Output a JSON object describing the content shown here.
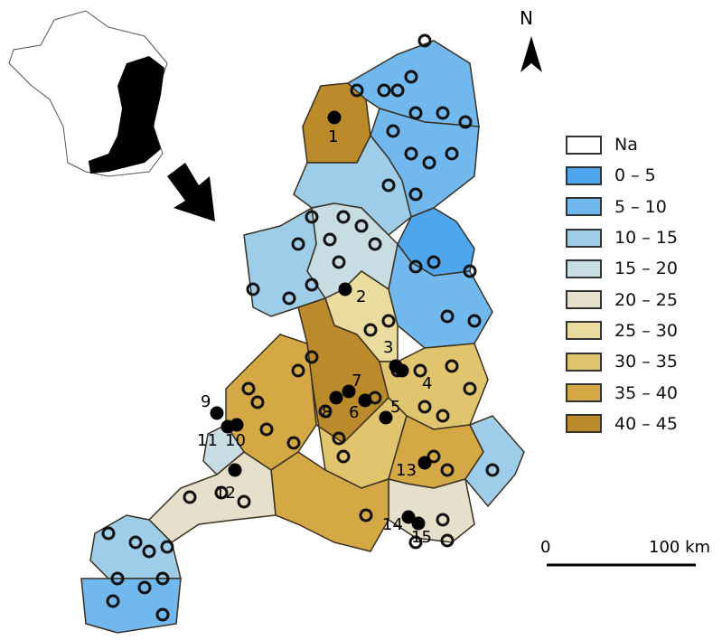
{
  "map": {
    "north_label": "N",
    "scale": {
      "start": "0",
      "end": "100 km"
    },
    "legend": [
      {
        "label": "Na",
        "color": "#ffffff"
      },
      {
        "label": "0 – 5",
        "color": "#4ea7ee"
      },
      {
        "label": "5 – 10",
        "color": "#70b8ee"
      },
      {
        "label": "10 – 15",
        "color": "#9dcde9"
      },
      {
        "label": "15 – 20",
        "color": "#c8dce4"
      },
      {
        "label": "20 – 25",
        "color": "#e6dfcc"
      },
      {
        "label": "25 – 30",
        "color": "#eadb9f"
      },
      {
        "label": "30 – 35",
        "color": "#e0c46e"
      },
      {
        "label": "35 – 40",
        "color": "#d3a845"
      },
      {
        "label": "40 – 45",
        "color": "#ba8a2b"
      }
    ],
    "site_labels": [
      "1",
      "2",
      "3",
      "4",
      "5",
      "6",
      "7",
      "8",
      "9",
      "10",
      "11",
      "12",
      "13",
      "14",
      "15"
    ]
  }
}
